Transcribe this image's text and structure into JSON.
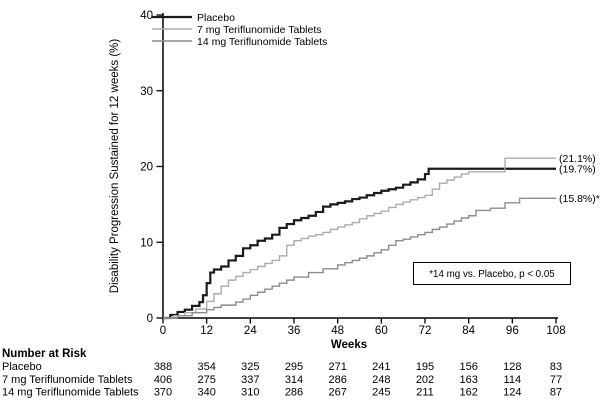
{
  "chart_data": {
    "type": "line",
    "subtype": "kaplan-meier-step",
    "title": "",
    "xlabel": "Weeks",
    "ylabel": "Disability Progression Sustained for 12 weeks (%)",
    "xlim": [
      0,
      108
    ],
    "ylim": [
      0,
      40
    ],
    "x_ticks": [
      0,
      12,
      24,
      36,
      48,
      60,
      72,
      84,
      96,
      108
    ],
    "y_ticks": [
      0,
      10,
      20,
      30,
      40
    ],
    "grid": false,
    "legend_position": "top-left-inside",
    "series": [
      {
        "id": "placebo",
        "name": "Placebo",
        "color": "#1a1a1a",
        "width": 2.2,
        "end_label": "(19.7%)",
        "end_value": 19.7,
        "points": [
          [
            0,
            0
          ],
          [
            2,
            0.4
          ],
          [
            4,
            0.8
          ],
          [
            6,
            1.1
          ],
          [
            8,
            1.6
          ],
          [
            10,
            2.1
          ],
          [
            11,
            3.0
          ],
          [
            12,
            4.6
          ],
          [
            13,
            6.0
          ],
          [
            14,
            6.4
          ],
          [
            16,
            6.8
          ],
          [
            18,
            7.6
          ],
          [
            20,
            8.2
          ],
          [
            22,
            9.2
          ],
          [
            24,
            9.6
          ],
          [
            26,
            10.2
          ],
          [
            28,
            10.5
          ],
          [
            30,
            11.0
          ],
          [
            32,
            11.9
          ],
          [
            34,
            12.4
          ],
          [
            36,
            12.9
          ],
          [
            38,
            13.2
          ],
          [
            40,
            13.5
          ],
          [
            42,
            14.0
          ],
          [
            44,
            14.7
          ],
          [
            46,
            15.0
          ],
          [
            48,
            15.2
          ],
          [
            50,
            15.4
          ],
          [
            52,
            15.7
          ],
          [
            54,
            15.9
          ],
          [
            56,
            16.2
          ],
          [
            58,
            16.5
          ],
          [
            60,
            16.8
          ],
          [
            62,
            17.0
          ],
          [
            64,
            17.2
          ],
          [
            66,
            17.6
          ],
          [
            68,
            17.9
          ],
          [
            70,
            18.3
          ],
          [
            72,
            19.0
          ],
          [
            73,
            19.7
          ],
          [
            108,
            19.7
          ]
        ]
      },
      {
        "id": "7mg",
        "name": "7 mg Teriflunomide Tablets",
        "color": "#acacac",
        "width": 1.4,
        "end_label": "(21.1%)",
        "end_value": 21.1,
        "points": [
          [
            0,
            0
          ],
          [
            3,
            0.3
          ],
          [
            6,
            0.7
          ],
          [
            9,
            1.2
          ],
          [
            12,
            2.2
          ],
          [
            14,
            3.2
          ],
          [
            16,
            4.2
          ],
          [
            18,
            5.0
          ],
          [
            20,
            5.5
          ],
          [
            22,
            6.0
          ],
          [
            24,
            6.4
          ],
          [
            26,
            6.8
          ],
          [
            28,
            7.2
          ],
          [
            30,
            7.6
          ],
          [
            32,
            8.2
          ],
          [
            34,
            9.6
          ],
          [
            36,
            10.2
          ],
          [
            38,
            10.5
          ],
          [
            40,
            10.8
          ],
          [
            42,
            11.0
          ],
          [
            44,
            11.3
          ],
          [
            46,
            11.7
          ],
          [
            48,
            12.0
          ],
          [
            50,
            12.3
          ],
          [
            52,
            12.6
          ],
          [
            54,
            13.1
          ],
          [
            56,
            13.5
          ],
          [
            58,
            13.8
          ],
          [
            60,
            14.1
          ],
          [
            62,
            14.6
          ],
          [
            64,
            15.0
          ],
          [
            66,
            15.3
          ],
          [
            68,
            15.6
          ],
          [
            70,
            15.9
          ],
          [
            72,
            16.2
          ],
          [
            74,
            17.0
          ],
          [
            76,
            17.8
          ],
          [
            78,
            18.2
          ],
          [
            80,
            18.6
          ],
          [
            82,
            19.0
          ],
          [
            84,
            19.3
          ],
          [
            94,
            21.1
          ],
          [
            108,
            21.1
          ]
        ]
      },
      {
        "id": "14mg",
        "name": "14 mg Teriflunomide Tablets",
        "color": "#8c8c8c",
        "width": 1.4,
        "end_label": "(15.8%)*",
        "end_value": 15.8,
        "points": [
          [
            0,
            0
          ],
          [
            4,
            0.3
          ],
          [
            8,
            0.7
          ],
          [
            12,
            1.1
          ],
          [
            14,
            1.4
          ],
          [
            16,
            1.7
          ],
          [
            20,
            2.1
          ],
          [
            22,
            2.5
          ],
          [
            24,
            3.0
          ],
          [
            26,
            3.4
          ],
          [
            28,
            3.8
          ],
          [
            30,
            4.2
          ],
          [
            32,
            4.6
          ],
          [
            34,
            5.0
          ],
          [
            36,
            5.4
          ],
          [
            40,
            6.0
          ],
          [
            44,
            6.5
          ],
          [
            48,
            7.0
          ],
          [
            50,
            7.3
          ],
          [
            52,
            7.6
          ],
          [
            54,
            7.9
          ],
          [
            56,
            8.2
          ],
          [
            58,
            8.6
          ],
          [
            60,
            9.0
          ],
          [
            62,
            9.6
          ],
          [
            64,
            10.2
          ],
          [
            66,
            10.4
          ],
          [
            68,
            10.7
          ],
          [
            70,
            11.0
          ],
          [
            72,
            11.3
          ],
          [
            74,
            11.7
          ],
          [
            76,
            12.0
          ],
          [
            78,
            12.4
          ],
          [
            80,
            12.8
          ],
          [
            82,
            13.2
          ],
          [
            84,
            13.5
          ],
          [
            86,
            14.2
          ],
          [
            90,
            14.5
          ],
          [
            94,
            15.2
          ],
          [
            98,
            15.8
          ],
          [
            108,
            15.8
          ]
        ]
      }
    ],
    "annotation": "*14 mg vs. Placebo, p < 0.05",
    "number_at_risk": {
      "title": "Number at Risk",
      "weeks": [
        0,
        12,
        24,
        36,
        48,
        60,
        72,
        84,
        96,
        108
      ],
      "rows": [
        {
          "label": "Placebo",
          "values": [
            388,
            354,
            325,
            295,
            271,
            241,
            195,
            156,
            128,
            83
          ]
        },
        {
          "label": "7 mg Teriflunomide Tablets",
          "values": [
            406,
            275,
            337,
            314,
            286,
            248,
            202,
            163,
            114,
            77
          ]
        },
        {
          "label": "14 mg Teriflunomide Tablets",
          "values": [
            370,
            340,
            310,
            286,
            267,
            245,
            211,
            162,
            124,
            87
          ]
        }
      ]
    },
    "colors": {
      "axis": "#000000",
      "background": "#ffffff"
    }
  }
}
